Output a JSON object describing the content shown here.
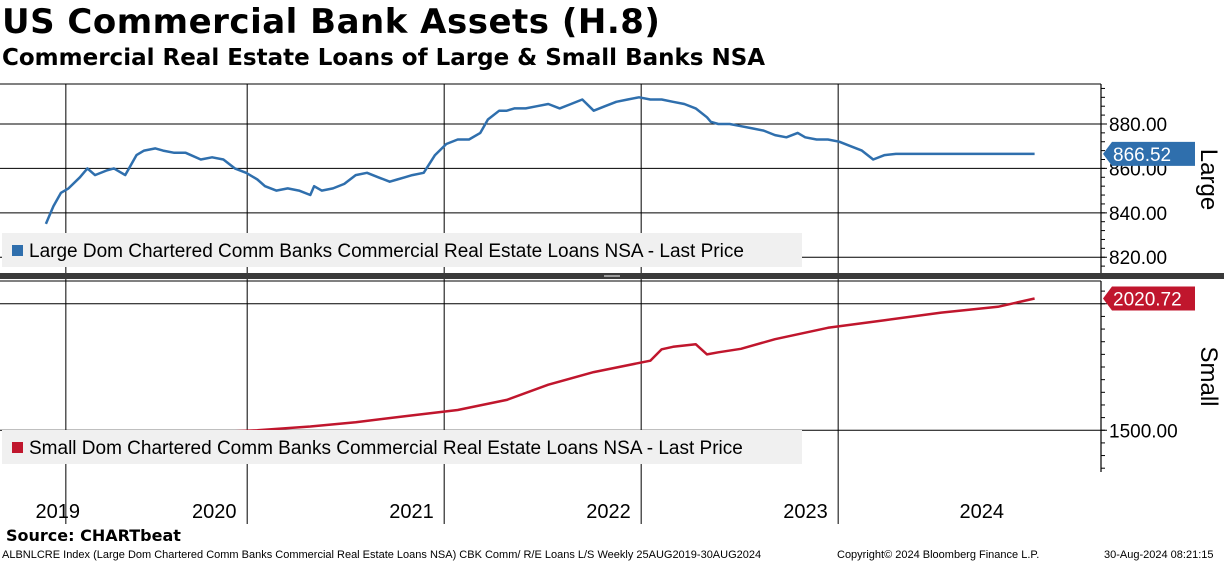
{
  "header": {
    "title": "US Commercial Bank Assets (H.8)",
    "subtitle": "Commercial Real Estate Loans of Large & Small Banks NSA"
  },
  "footer": {
    "source": "Source: CHARTbeat",
    "ticker": "ALBNLCRE Index (Large Dom Chartered Comm Banks Commercial Real Estate Loans NSA) CBK Comm/ R/E Loans L/S  Weekly 25AUG2019-30AUG2024",
    "copyright": "Copyright© 2024 Bloomberg Finance L.P.",
    "timestamp": "30-Aug-2024 08:21:15"
  },
  "colors": {
    "large": "#2f6fad",
    "small": "#c0162d"
  },
  "chart_data": [
    {
      "type": "line",
      "panel_label": "Large",
      "legend": "Large Dom Chartered Comm Banks Commercial Real Estate Loans NSA - Last Price",
      "legend_position": "bottom-left",
      "ylim": [
        812,
        898
      ],
      "yticks": [
        820,
        840,
        860,
        880
      ],
      "ytick_labels": [
        "820.00",
        "840.00",
        "860.00",
        "880.00"
      ],
      "last_value": "866.52",
      "grid": true,
      "series": [
        {
          "x": [
            "2019-08-25",
            "2019-09-08",
            "2019-09-22",
            "2019-10-06",
            "2019-10-27",
            "2019-11-10",
            "2019-11-24",
            "2019-12-15",
            "2019-12-29",
            "2020-01-19",
            "2020-02-09",
            "2020-02-23",
            "2020-03-15",
            "2020-03-29",
            "2020-04-19",
            "2020-05-10",
            "2020-06-07",
            "2020-06-28",
            "2020-07-19",
            "2020-08-09",
            "2020-08-30",
            "2020-09-20",
            "2020-10-04",
            "2020-10-25",
            "2020-11-15",
            "2020-12-06",
            "2020-12-27",
            "2021-01-03",
            "2021-01-17",
            "2021-02-07",
            "2021-02-28",
            "2021-03-21",
            "2021-04-11",
            "2021-05-02",
            "2021-05-23",
            "2021-06-06",
            "2021-06-20",
            "2021-07-04",
            "2021-07-25",
            "2021-08-15",
            "2021-09-05",
            "2021-09-26",
            "2021-10-17",
            "2021-11-07",
            "2021-11-21",
            "2021-12-12",
            "2021-12-26",
            "2022-01-09",
            "2022-01-30",
            "2022-02-20",
            "2022-03-13",
            "2022-04-03",
            "2022-04-24",
            "2022-05-15",
            "2022-06-05",
            "2022-06-26",
            "2022-07-17",
            "2022-08-07",
            "2022-08-28",
            "2022-09-18",
            "2022-10-09",
            "2022-10-30",
            "2022-11-20",
            "2022-12-11",
            "2023-01-01",
            "2023-01-08",
            "2023-01-22",
            "2023-02-12",
            "2023-03-05",
            "2023-03-26",
            "2023-04-16",
            "2023-05-07",
            "2023-05-28",
            "2023-06-18",
            "2023-07-02",
            "2023-07-23",
            "2023-08-13",
            "2023-09-03",
            "2023-09-24",
            "2023-10-15",
            "2023-11-05",
            "2023-11-26",
            "2023-12-17",
            "2024-01-07",
            "2024-01-28",
            "2024-02-18",
            "2024-03-10",
            "2024-03-31",
            "2024-04-21",
            "2024-05-12",
            "2024-06-02",
            "2024-06-23",
            "2024-07-14",
            "2024-08-04",
            "2024-08-18",
            "2024-08-30"
          ],
          "values": [
            835,
            843,
            849,
            851,
            856,
            860,
            857,
            859,
            860,
            857,
            866,
            868,
            869,
            868,
            867,
            867,
            864,
            865,
            864,
            860,
            858,
            855,
            852,
            850,
            851,
            850,
            848,
            852,
            850,
            851,
            853,
            857,
            858,
            856,
            854,
            855,
            856,
            857,
            858,
            866,
            871,
            873,
            873,
            876,
            882,
            886,
            886,
            887,
            887,
            888,
            889,
            887,
            889,
            891,
            886,
            888,
            890,
            891,
            892,
            891,
            891,
            890,
            889,
            887,
            883,
            881,
            880,
            880,
            879,
            878,
            877,
            875,
            874,
            876,
            874,
            873,
            873,
            872,
            870,
            868,
            864,
            866,
            866.52,
            866.52,
            866.52,
            866.52,
            866.52,
            866.52,
            866.52,
            866.52,
            866.52,
            866.52,
            866.52,
            866.52,
            866.52,
            866.52
          ]
        }
      ]
    },
    {
      "type": "line",
      "panel_label": "Small",
      "legend": "Small Dom Chartered Comm Banks Commercial Real Estate Loans NSA - Last Price",
      "legend_position": "bottom-left",
      "ylim": [
        1335,
        2090
      ],
      "yticks": [
        1500,
        2000
      ],
      "ytick_labels": [
        "1500.00",
        ""
      ],
      "last_value": "2020.72",
      "grid": true,
      "series": [
        {
          "x": [
            "2019-08-25",
            "2019-11-24",
            "2019-12-15",
            "2020-03-15",
            "2020-06-07",
            "2020-09-20",
            "2020-12-27",
            "2021-03-21",
            "2021-06-20",
            "2021-09-26",
            "2021-12-26",
            "2022-03-13",
            "2022-06-05",
            "2022-09-18",
            "2022-10-09",
            "2022-10-30",
            "2022-12-11",
            "2023-01-01",
            "2023-01-22",
            "2023-03-05",
            "2023-05-07",
            "2023-08-13",
            "2023-11-26",
            "2024-03-10",
            "2024-06-23",
            "2024-08-30"
          ],
          "values": [
            1440,
            1447,
            1460,
            1478,
            1490,
            1500,
            1515,
            1532,
            1555,
            1580,
            1620,
            1680,
            1730,
            1775,
            1820,
            1830,
            1840,
            1800,
            1808,
            1822,
            1860,
            1905,
            1935,
            1965,
            1988,
            2020.72
          ]
        }
      ]
    }
  ],
  "x_axis": {
    "range": [
      "2019-06-01",
      "2024-12-31"
    ],
    "year_labels": [
      "2019",
      "2020",
      "2021",
      "2022",
      "2023",
      "2024"
    ],
    "gridlines": [
      "2019-10-01",
      "2020-09-01",
      "2021-09-01",
      "2022-09-01",
      "2023-09-01"
    ]
  }
}
